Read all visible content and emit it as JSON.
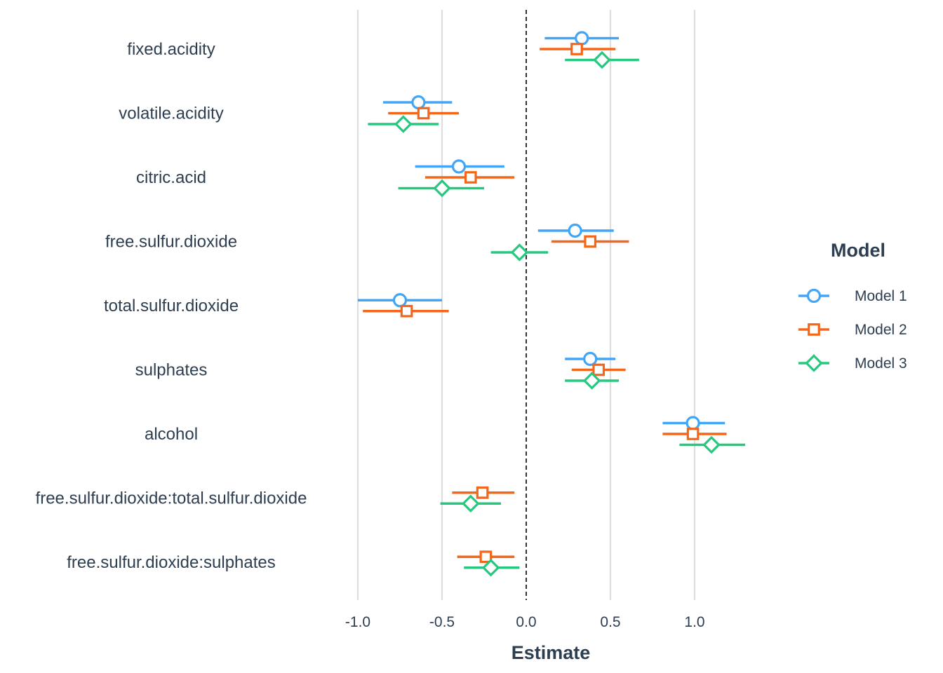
{
  "chart_data": {
    "type": "scatter",
    "subtype": "coefficient-plot",
    "title": "",
    "xlabel": "Estimate",
    "ylabel": "",
    "xlim": [
      -1.15,
      1.35
    ],
    "x_ticks": [
      -1.0,
      -0.5,
      0.0,
      0.5,
      1.0
    ],
    "x_tick_labels": [
      "-1.0",
      "-0.5",
      "0.0",
      "0.5",
      "1.0"
    ],
    "vertical_grid": true,
    "reference_line": {
      "x": 0,
      "style": "dashed",
      "color": "#000000"
    },
    "legend": {
      "title": "Model",
      "position": "right"
    },
    "terms": [
      "fixed.acidity",
      "volatile.acidity",
      "citric.acid",
      "free.sulfur.dioxide",
      "total.sulfur.dioxide",
      "sulphates",
      "alcohol",
      "free.sulfur.dioxide:total.sulfur.dioxide",
      "free.sulfur.dioxide:sulphates"
    ],
    "series": [
      {
        "name": "Model 1",
        "color": "#42a5f5",
        "marker": "circle",
        "points": [
          {
            "term": "fixed.acidity",
            "estimate": 0.33,
            "low": 0.11,
            "high": 0.55
          },
          {
            "term": "volatile.acidity",
            "estimate": -0.64,
            "low": -0.85,
            "high": -0.44
          },
          {
            "term": "citric.acid",
            "estimate": -0.4,
            "low": -0.66,
            "high": -0.13
          },
          {
            "term": "free.sulfur.dioxide",
            "estimate": 0.29,
            "low": 0.07,
            "high": 0.52
          },
          {
            "term": "total.sulfur.dioxide",
            "estimate": -0.75,
            "low": -1.0,
            "high": -0.5
          },
          {
            "term": "sulphates",
            "estimate": 0.38,
            "low": 0.23,
            "high": 0.53
          },
          {
            "term": "alcohol",
            "estimate": 0.99,
            "low": 0.81,
            "high": 1.18
          }
        ]
      },
      {
        "name": "Model 2",
        "color": "#f4661a",
        "marker": "square",
        "points": [
          {
            "term": "fixed.acidity",
            "estimate": 0.3,
            "low": 0.08,
            "high": 0.53
          },
          {
            "term": "volatile.acidity",
            "estimate": -0.61,
            "low": -0.82,
            "high": -0.4
          },
          {
            "term": "citric.acid",
            "estimate": -0.33,
            "low": -0.6,
            "high": -0.07
          },
          {
            "term": "free.sulfur.dioxide",
            "estimate": 0.38,
            "low": 0.15,
            "high": 0.61
          },
          {
            "term": "total.sulfur.dioxide",
            "estimate": -0.71,
            "low": -0.97,
            "high": -0.46
          },
          {
            "term": "sulphates",
            "estimate": 0.43,
            "low": 0.27,
            "high": 0.59
          },
          {
            "term": "alcohol",
            "estimate": 0.99,
            "low": 0.81,
            "high": 1.19
          },
          {
            "term": "free.sulfur.dioxide:total.sulfur.dioxide",
            "estimate": -0.26,
            "low": -0.44,
            "high": -0.07
          },
          {
            "term": "free.sulfur.dioxide:sulphates",
            "estimate": -0.24,
            "low": -0.41,
            "high": -0.07
          }
        ]
      },
      {
        "name": "Model 3",
        "color": "#26c77e",
        "marker": "diamond",
        "points": [
          {
            "term": "fixed.acidity",
            "estimate": 0.45,
            "low": 0.23,
            "high": 0.67
          },
          {
            "term": "volatile.acidity",
            "estimate": -0.73,
            "low": -0.94,
            "high": -0.52
          },
          {
            "term": "citric.acid",
            "estimate": -0.5,
            "low": -0.76,
            "high": -0.25
          },
          {
            "term": "free.sulfur.dioxide",
            "estimate": -0.04,
            "low": -0.21,
            "high": 0.13
          },
          {
            "term": "sulphates",
            "estimate": 0.39,
            "low": 0.23,
            "high": 0.55
          },
          {
            "term": "alcohol",
            "estimate": 1.1,
            "low": 0.91,
            "high": 1.3
          },
          {
            "term": "free.sulfur.dioxide:total.sulfur.dioxide",
            "estimate": -0.33,
            "low": -0.51,
            "high": -0.15
          },
          {
            "term": "free.sulfur.dioxide:sulphates",
            "estimate": -0.21,
            "low": -0.37,
            "high": -0.04
          }
        ]
      }
    ]
  }
}
